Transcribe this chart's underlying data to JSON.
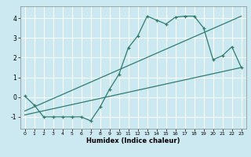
{
  "xlabel": "Humidex (Indice chaleur)",
  "ylabel": "",
  "bg_color": "#cce8f0",
  "grid_color": "#ffffff",
  "line_color": "#2e7d6e",
  "xlim": [
    -0.5,
    23.5
  ],
  "ylim": [
    -1.6,
    4.6
  ],
  "yticks": [
    -1,
    0,
    1,
    2,
    3,
    4
  ],
  "xticks": [
    0,
    1,
    2,
    3,
    4,
    5,
    6,
    7,
    8,
    9,
    10,
    11,
    12,
    13,
    14,
    15,
    16,
    17,
    18,
    19,
    20,
    21,
    22,
    23
  ],
  "line1_x": [
    0,
    1,
    2,
    3,
    4,
    5,
    6,
    7,
    8,
    9,
    10,
    11,
    12,
    13,
    14,
    15,
    16,
    17,
    18,
    19,
    20,
    21,
    22,
    23
  ],
  "line1_y": [
    0.05,
    -0.4,
    -1.0,
    -1.0,
    -1.0,
    -1.0,
    -1.0,
    -1.2,
    -0.5,
    0.4,
    1.15,
    2.5,
    3.1,
    4.1,
    3.9,
    3.7,
    4.05,
    4.1,
    4.1,
    3.5,
    1.9,
    2.1,
    2.55,
    1.5
  ],
  "line2_x": [
    0,
    23
  ],
  "line2_y": [
    -0.7,
    4.1
  ],
  "line3_x": [
    0,
    23
  ],
  "line3_y": [
    -0.9,
    1.5
  ]
}
